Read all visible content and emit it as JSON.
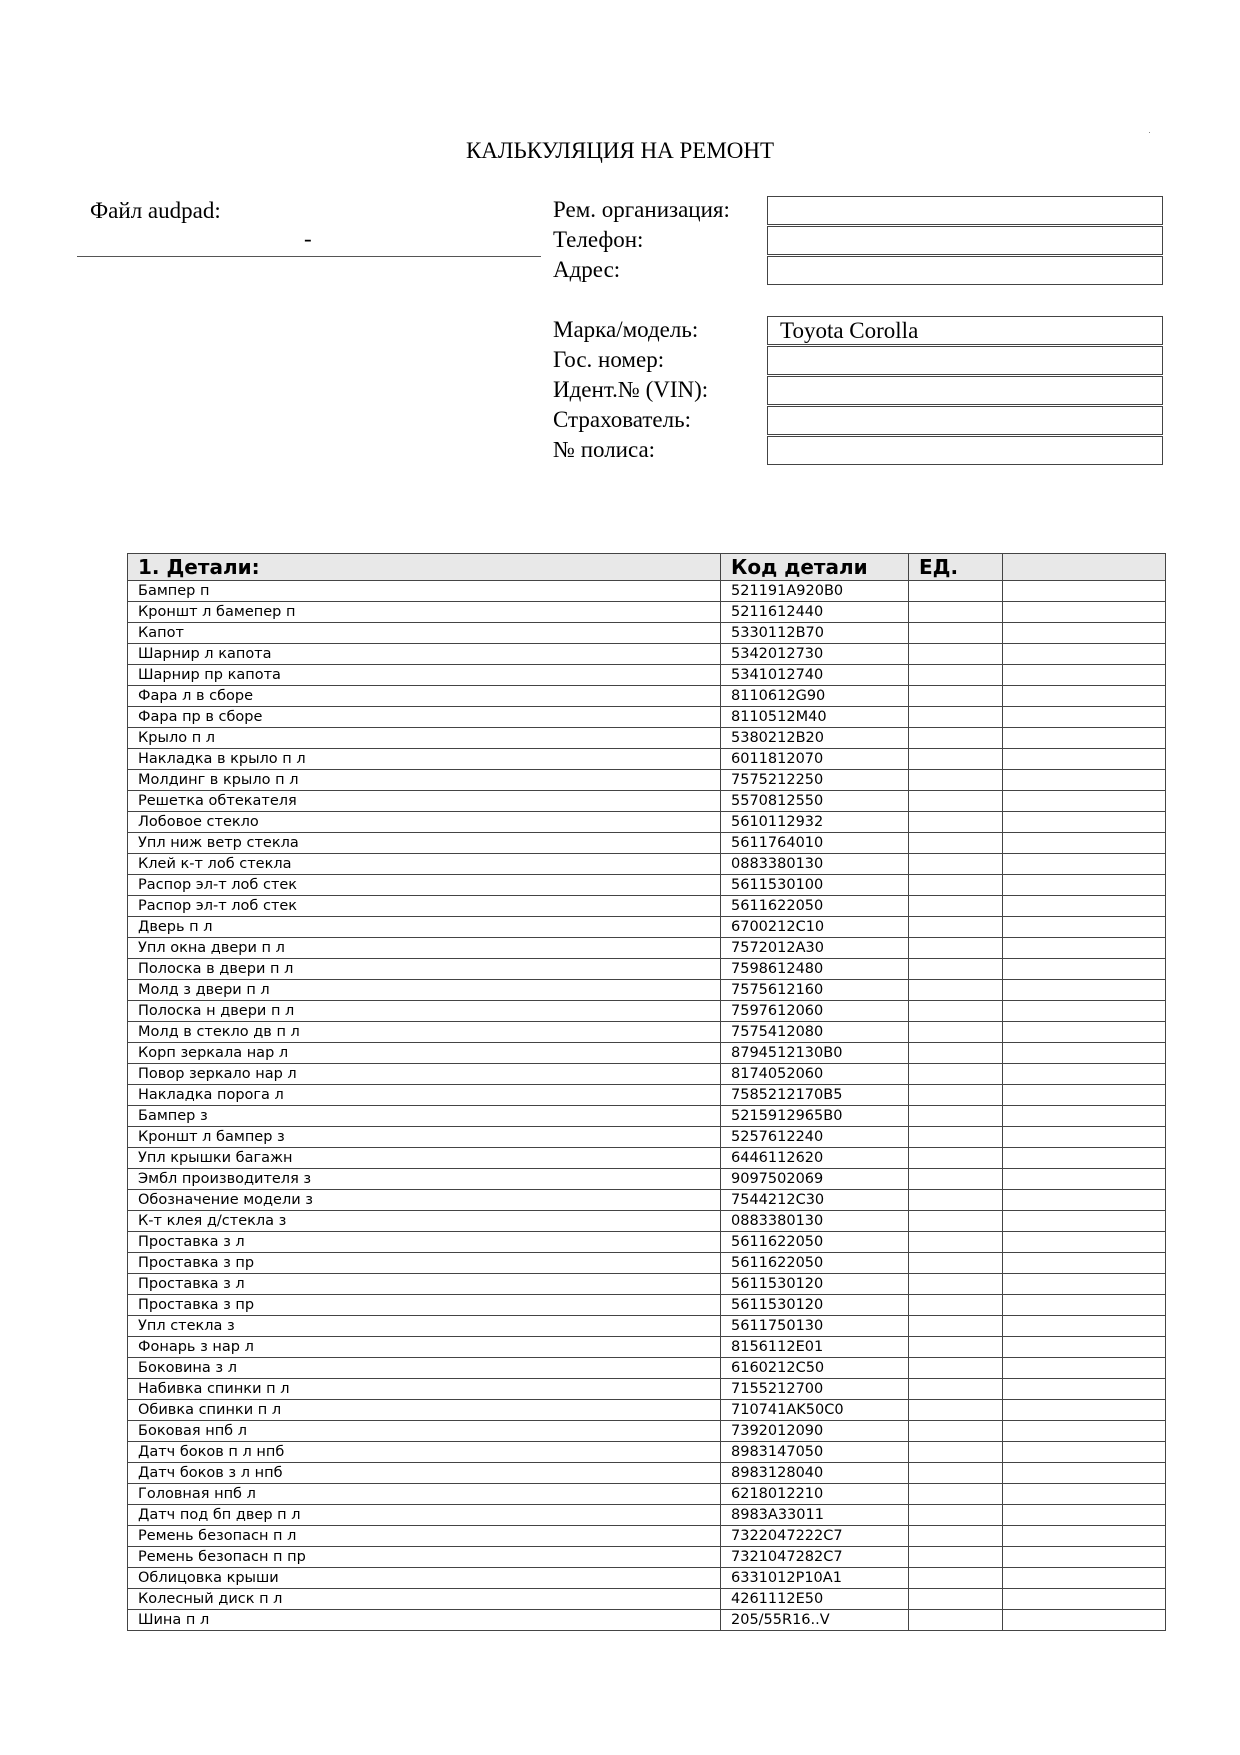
{
  "title": "КАЛЬКУЛЯЦИЯ НА РЕМОНТ",
  "file": {
    "label": "Файл audpad:",
    "value": "-"
  },
  "org_fields": [
    {
      "label": "Рем. организация:",
      "value": ""
    },
    {
      "label": "Телефон:",
      "value": ""
    },
    {
      "label": "Адрес:",
      "value": ""
    }
  ],
  "vehicle_fields": [
    {
      "label": "Марка/модель:",
      "value": "Toyota Corolla"
    },
    {
      "label": "Гос. номер:",
      "value": ""
    },
    {
      "label": "Идент.№ (VIN):",
      "value": ""
    },
    {
      "label": "Страхователь:",
      "value": ""
    },
    {
      "label": "№ полиса:",
      "value": ""
    }
  ],
  "parts_table": {
    "headers": [
      "1. Детали:",
      "Код детали",
      "ЕД.",
      ""
    ],
    "rows": [
      [
        "Бампер п",
        "521191A920B0"
      ],
      [
        "Кроншт л бамепер п",
        "5211612440"
      ],
      [
        "Капот",
        "5330112B70"
      ],
      [
        "Шарнир л капота",
        "5342012730"
      ],
      [
        "Шарнир пр капота",
        "5341012740"
      ],
      [
        "Фара л в сборе",
        "8110612G90"
      ],
      [
        "Фара пр в сборе",
        "8110512M40"
      ],
      [
        "Крыло п л",
        "5380212B20"
      ],
      [
        "Накладка в крыло п л",
        "6011812070"
      ],
      [
        "Молдинг в крыло п л",
        "7575212250"
      ],
      [
        "Решетка обтекателя",
        "5570812550"
      ],
      [
        "Лобовое стекло",
        "5610112932"
      ],
      [
        "Упл ниж ветр стекла",
        "5611764010"
      ],
      [
        "Клей к-т лоб стекла",
        "0883380130"
      ],
      [
        "Распор эл-т лоб стек",
        "5611530100"
      ],
      [
        "Распор эл-т лоб стек",
        "5611622050"
      ],
      [
        "Дверь п л",
        "6700212C10"
      ],
      [
        "Упл окна двери п л",
        "7572012A30"
      ],
      [
        "Полоска в двери п л",
        "7598612480"
      ],
      [
        "Молд з двери п л",
        "7575612160"
      ],
      [
        "Полоска н двери п л",
        "7597612060"
      ],
      [
        "Молд в стекло дв п л",
        "7575412080"
      ],
      [
        "Корп зеркала нар л",
        "8794512130B0"
      ],
      [
        "Повор зеркало нар л",
        "8174052060"
      ],
      [
        "Накладка порога л",
        "7585212170B5"
      ],
      [
        "Бампер з",
        "5215912965B0"
      ],
      [
        "Кроншт л бампер з",
        "5257612240"
      ],
      [
        "Упл крышки багажн",
        "6446112620"
      ],
      [
        "Эмбл производителя з",
        "9097502069"
      ],
      [
        "Обозначение модели з",
        "7544212C30"
      ],
      [
        "К-т клея д/стекла з",
        "0883380130"
      ],
      [
        "Проставка з л",
        "5611622050"
      ],
      [
        "Проставка з пр",
        "5611622050"
      ],
      [
        "Проставка з л",
        "5611530120"
      ],
      [
        "Проставка з пр",
        "5611530120"
      ],
      [
        "Упл стекла з",
        "5611750130"
      ],
      [
        "Фонарь з нар л",
        "8156112E01"
      ],
      [
        "Боковина з л",
        "6160212C50"
      ],
      [
        "Набивка спинки п л",
        "7155212700"
      ],
      [
        "Обивка спинки  п л",
        "710741AK50C0"
      ],
      [
        "Боковая нпб л",
        "7392012090"
      ],
      [
        "Датч боков п л нпб",
        "8983147050"
      ],
      [
        "Датч боков з л нпб",
        "8983128040"
      ],
      [
        "Головная нпб л",
        "6218012210"
      ],
      [
        "Датч под бп двер п л",
        "8983A33011"
      ],
      [
        "Ремень безопасн п л",
        "7322047222C7"
      ],
      [
        "Ремень безопасн п пр",
        "7321047282C7"
      ],
      [
        "Облицовка крыши",
        "6331012P10A1"
      ],
      [
        "Колесный диск п л",
        "4261112E50"
      ],
      [
        "Шина п л",
        "205/55R16..V"
      ]
    ]
  }
}
